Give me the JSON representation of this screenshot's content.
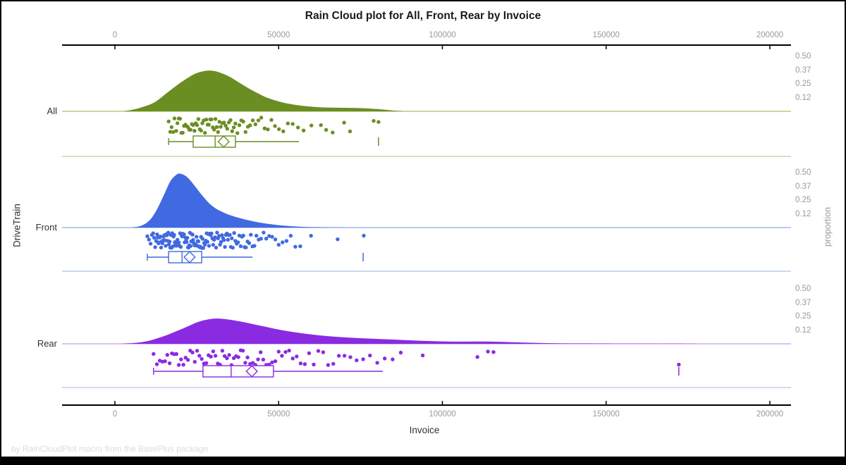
{
  "title": "Rain Cloud plot for All, Front, Rear by Invoice",
  "footnote": "by RainCloudPlot macro from the BasePlus package",
  "axes": {
    "x_top": {
      "tick_labels": [
        "0",
        "50000",
        "100000",
        "150000",
        "200000"
      ],
      "tick_values": [
        0,
        50000,
        100000,
        150000,
        200000
      ]
    },
    "x_bottom": {
      "label": "Invoice",
      "tick_labels": [
        "0",
        "50000",
        "100000",
        "150000",
        "200000"
      ],
      "tick_values": [
        0,
        50000,
        100000,
        150000,
        200000
      ]
    },
    "y_left": {
      "label": "DriveTrain",
      "categories": [
        "All",
        "Front",
        "Rear"
      ]
    },
    "y_right": {
      "label": "proportion",
      "tick_labels": [
        "0.50",
        "0.37",
        "0.25",
        "0.12"
      ],
      "tick_values": [
        0.5,
        0.375,
        0.25,
        0.125
      ]
    }
  },
  "colors": {
    "all": "#6B8E23",
    "all_light": "#CBD7A2",
    "front": "#4169E1",
    "front_light": "#BACAF0",
    "rear": "#8A2BE2",
    "rear_light": "#D9C2F2",
    "axis": "#000000",
    "tick_text": "#999999",
    "footnote_text": "#dcdcdc"
  },
  "chart_data": {
    "type": "raincloud",
    "title": "Rain Cloud plot for All, Front, Rear by Invoice",
    "xlabel": "Invoice",
    "ylabel_left": "DriveTrain",
    "ylabel_right": "proportion",
    "x_range": [
      0,
      200000
    ],
    "proportion_ticks": [
      0.5,
      0.375,
      0.25,
      0.125
    ],
    "grid": false,
    "groups": [
      {
        "name": "All",
        "color": "#6B8E23",
        "light_color": "#CBD7A2",
        "density": {
          "x": [
            2500,
            5000,
            8000,
            12000,
            16000,
            20000,
            24000,
            27000,
            29500,
            32000,
            35000,
            38000,
            42000,
            46000,
            50000,
            54000,
            58000,
            62000,
            66000,
            70000,
            74000,
            78000,
            82000,
            85000,
            88000
          ],
          "p": [
            0,
            0.012,
            0.035,
            0.08,
            0.17,
            0.26,
            0.335,
            0.365,
            0.37,
            0.353,
            0.315,
            0.26,
            0.19,
            0.13,
            0.09,
            0.064,
            0.048,
            0.038,
            0.034,
            0.032,
            0.03,
            0.025,
            0.016,
            0.007,
            0
          ]
        },
        "box": {
          "whisker_low": 16400,
          "q1": 23900,
          "median": 30600,
          "q3": 36800,
          "whisker_high": 56200,
          "mean": 33200,
          "far_outlier": 80500
        },
        "points": [
          16400,
          16900,
          17300,
          17800,
          18200,
          18700,
          19100,
          19500,
          19900,
          20300,
          20700,
          21100,
          21500,
          21900,
          22300,
          22700,
          23100,
          23500,
          23900,
          24300,
          24700,
          25100,
          25500,
          25900,
          26300,
          26700,
          27100,
          27500,
          27900,
          28300,
          28700,
          29100,
          29500,
          29900,
          30300,
          30700,
          31100,
          31500,
          31900,
          32300,
          32800,
          33300,
          33800,
          34300,
          34800,
          35300,
          35800,
          36300,
          36800,
          37400,
          38000,
          38600,
          39200,
          39900,
          40600,
          41300,
          42100,
          42900,
          43800,
          44700,
          45700,
          46700,
          47800,
          48900,
          50100,
          51400,
          52800,
          54300,
          55900,
          57600,
          60000,
          62900,
          64500,
          66500,
          70000,
          71800,
          79000,
          80500
        ]
      },
      {
        "name": "Front",
        "color": "#4169E1",
        "light_color": "#BACAF0",
        "density": {
          "x": [
            5000,
            7000,
            9000,
            11000,
            13000,
            15000,
            17000,
            19000,
            20000,
            21500,
            23000,
            25000,
            27000,
            29000,
            31000,
            33000,
            35000,
            38000,
            41000,
            44000,
            47000,
            50000,
            54000,
            58000,
            62000,
            66000,
            70000
          ],
          "p": [
            0,
            0.008,
            0.03,
            0.08,
            0.175,
            0.3,
            0.425,
            0.485,
            0.49,
            0.472,
            0.43,
            0.355,
            0.28,
            0.215,
            0.17,
            0.14,
            0.115,
            0.087,
            0.065,
            0.047,
            0.033,
            0.022,
            0.012,
            0.006,
            0.003,
            0.001,
            0
          ]
        },
        "box": {
          "whisker_low": 9900,
          "q1": 16400,
          "median": 20500,
          "q3": 26500,
          "whisker_high": 42000,
          "mean": 22800,
          "far_outlier": 75800
        },
        "points": [
          9900,
          10400,
          10900,
          11300,
          11700,
          12000,
          12300,
          12600,
          12900,
          13100,
          13300,
          13500,
          13700,
          13900,
          14100,
          14300,
          14500,
          14700,
          14900,
          15100,
          15300,
          15500,
          15700,
          15900,
          16100,
          16300,
          16500,
          16700,
          16900,
          17100,
          17300,
          17500,
          17700,
          17900,
          18100,
          18300,
          18500,
          18700,
          18900,
          19100,
          19300,
          19500,
          19700,
          19900,
          20100,
          20300,
          20500,
          20700,
          20900,
          21100,
          21300,
          21500,
          21700,
          21900,
          22100,
          22300,
          22500,
          22700,
          22900,
          23100,
          23300,
          23500,
          23700,
          23900,
          24100,
          24300,
          24500,
          24700,
          24900,
          25100,
          25300,
          25500,
          25700,
          25900,
          26100,
          26300,
          26500,
          26750,
          27000,
          27250,
          27500,
          27750,
          28000,
          28250,
          28500,
          28750,
          29000,
          29250,
          29500,
          29750,
          30000,
          30300,
          30600,
          30900,
          31200,
          31500,
          31800,
          32100,
          32400,
          32700,
          33000,
          33300,
          33600,
          33900,
          34200,
          34500,
          34800,
          35100,
          35400,
          35700,
          36000,
          36400,
          36800,
          37200,
          37600,
          38000,
          38400,
          38800,
          39200,
          39600,
          40000,
          40500,
          41000,
          41500,
          42000,
          42600,
          43200,
          43900,
          44600,
          45400,
          46200,
          47100,
          48000,
          49000,
          50000,
          51200,
          52400,
          53700,
          55100,
          56600,
          59900,
          68000,
          76000
        ]
      },
      {
        "name": "Rear",
        "color": "#8A2BE2",
        "light_color": "#D9C2F2",
        "density": {
          "x": [
            2000,
            6000,
            10000,
            14000,
            18000,
            22000,
            25000,
            28000,
            31000,
            34000,
            38000,
            42000,
            46000,
            50000,
            55000,
            60000,
            65000,
            70000,
            75000,
            80000,
            85000,
            90000,
            95000,
            100000,
            105000,
            110000,
            115000,
            120000,
            125000,
            130000,
            136000,
            143000,
            152000,
            162000,
            172000,
            178000
          ],
          "p": [
            0,
            0.008,
            0.025,
            0.06,
            0.105,
            0.155,
            0.195,
            0.22,
            0.23,
            0.224,
            0.205,
            0.18,
            0.155,
            0.13,
            0.105,
            0.085,
            0.07,
            0.059,
            0.051,
            0.045,
            0.039,
            0.032,
            0.026,
            0.022,
            0.02,
            0.021,
            0.02,
            0.016,
            0.011,
            0.007,
            0.004,
            0.003,
            0.002,
            0.001,
            0.001,
            0
          ]
        },
        "box": {
          "whisker_low": 11800,
          "q1": 26900,
          "median": 35500,
          "q3": 48400,
          "whisker_high": 81800,
          "mean": 41800,
          "far_outlier": 172200
        },
        "points": [
          11800,
          12800,
          13700,
          14500,
          15300,
          16000,
          16700,
          17400,
          18100,
          18800,
          19500,
          20200,
          20900,
          21600,
          22300,
          23000,
          23700,
          24400,
          25100,
          25800,
          26500,
          27200,
          27900,
          28600,
          29300,
          30000,
          30700,
          31400,
          32100,
          32800,
          33500,
          34200,
          34900,
          35600,
          36300,
          37000,
          37700,
          38400,
          39100,
          39800,
          40500,
          41300,
          42100,
          42900,
          43700,
          44500,
          45300,
          46200,
          47100,
          48000,
          49000,
          50000,
          51000,
          52100,
          53200,
          54300,
          55500,
          56700,
          58000,
          59300,
          60700,
          62100,
          63600,
          65100,
          66700,
          68400,
          70100,
          71900,
          73800,
          75800,
          77900,
          80100,
          82400,
          84800,
          87300,
          94000,
          110700,
          113900,
          115600,
          172200
        ]
      }
    ]
  }
}
